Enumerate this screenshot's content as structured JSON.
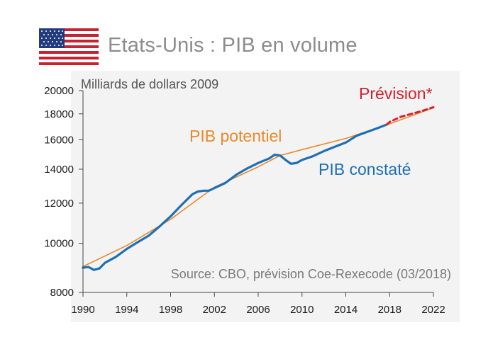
{
  "header": {
    "title": "Etats-Unis : PIB en volume",
    "flag_icon": "us-flag-icon"
  },
  "colors": {
    "potential": "#e88a2c",
    "observed": "#1f6fb4",
    "forecast": "#d8202f",
    "title_grey": "#8c8c8c",
    "panel": "#f3f3f3"
  },
  "chart_data": {
    "type": "line",
    "ylabel": "Milliards de dollars 2009",
    "y_scale": "log",
    "ylim": [
      8000,
      20000
    ],
    "xlim": [
      1990,
      2022
    ],
    "y_ticks": [
      "8000",
      "10000",
      "12000",
      "14000",
      "16000",
      "18000",
      "20000"
    ],
    "x_ticks": [
      "1990",
      "1994",
      "1998",
      "2002",
      "2006",
      "2010",
      "2014",
      "2018",
      "2022"
    ],
    "source": "Source: CBO, prévision Coe-Rexecode (03/2018)",
    "series": [
      {
        "name": "PIB potentiel",
        "color": "#e88a2c",
        "x": [
          1990,
          1994,
          1998,
          2002,
          2006,
          2008,
          2010,
          2014,
          2018,
          2022
        ],
        "y": [
          9000,
          9900,
          11150,
          12900,
          14150,
          14900,
          15300,
          16100,
          17200,
          18500
        ]
      },
      {
        "name": "PIB constaté",
        "color": "#1f6fb4",
        "x": [
          1990,
          1990.5,
          1991,
          1991.5,
          1992,
          1993,
          1994,
          1995,
          1996,
          1997,
          1998,
          1999,
          2000,
          2000.5,
          2001,
          2001.5,
          2002,
          2003,
          2004,
          2005,
          2006,
          2007,
          2007.5,
          2008,
          2008.5,
          2009,
          2009.5,
          2010,
          2011,
          2012,
          2013,
          2014,
          2015,
          2016,
          2017,
          2017.75
        ],
        "y": [
          8950,
          8980,
          8860,
          8920,
          9150,
          9400,
          9750,
          10050,
          10350,
          10800,
          11300,
          11900,
          12500,
          12650,
          12700,
          12700,
          12850,
          13150,
          13650,
          14050,
          14400,
          14700,
          14950,
          14900,
          14600,
          14350,
          14400,
          14600,
          14850,
          15200,
          15500,
          15800,
          16300,
          16600,
          16900,
          17150
        ]
      },
      {
        "name": "Prévision*",
        "color": "#d8202f",
        "dashed": true,
        "x": [
          2017.75,
          2018,
          2019,
          2020,
          2021,
          2022
        ],
        "y": [
          17150,
          17350,
          17750,
          18000,
          18250,
          18550
        ]
      }
    ]
  }
}
